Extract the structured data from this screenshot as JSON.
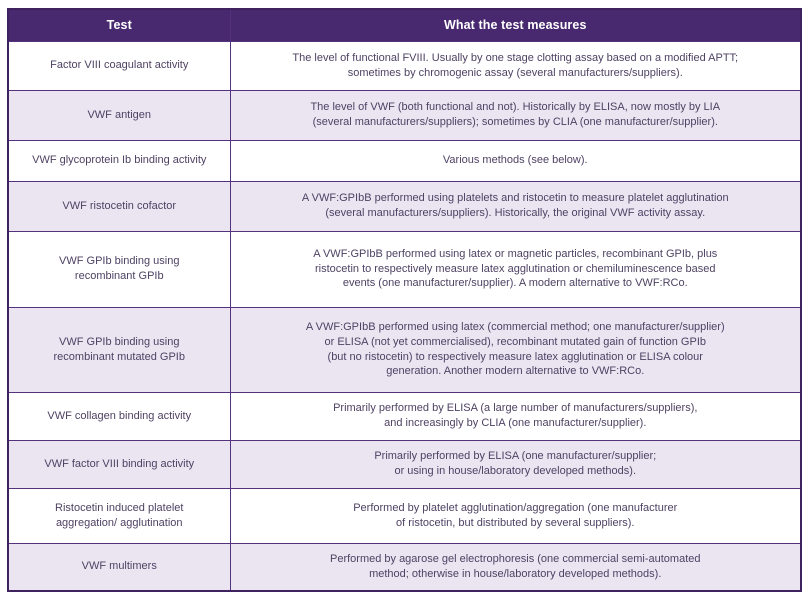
{
  "colors": {
    "header_background": "#482970",
    "header_text": "#ffffff",
    "row_alternate_background": "#ebe5f2",
    "row_background": "#ffffff",
    "border": "#54327e",
    "cell_text": "#4e4263"
  },
  "table": {
    "columns": [
      "Test",
      "What the test measures"
    ],
    "rows": [
      {
        "test": "Factor VIII coagulant activity",
        "measures": "The level of functional FVIII. Usually by one stage clotting assay based on a modified APTT;\nsometimes by chromogenic assay (several manufacturers/suppliers)."
      },
      {
        "test": "VWF antigen",
        "measures": "The level of VWF (both functional and not). Historically by ELISA, now mostly by LIA\n(several manufacturers/suppliers); sometimes by CLIA (one manufacturer/supplier)."
      },
      {
        "test": "VWF glycoprotein Ib binding activity",
        "measures": "Various methods (see below)."
      },
      {
        "test": "VWF ristocetin cofactor",
        "measures": "A VWF:GPIbB performed using platelets and ristocetin to measure platelet agglutination\n(several manufacturers/suppliers). Historically, the original VWF activity assay."
      },
      {
        "test": "VWF GPIb binding using\nrecombinant GPIb",
        "measures": "A VWF:GPIbB performed using latex or magnetic particles, recombinant GPIb, plus\nristocetin to respectively measure latex agglutination or chemiluminescence based\nevents (one manufacturer/supplier). A modern alternative to VWF:RCo."
      },
      {
        "test": "VWF GPIb binding using\nrecombinant mutated GPIb",
        "measures": "A VWF:GPIbB performed using latex (commercial method; one manufacturer/supplier)\nor ELISA (not yet commercialised), recombinant mutated gain of function GPIb\n(but no ristocetin) to respectively measure latex agglutination or ELISA colour\ngeneration. Another modern alternative to VWF:RCo."
      },
      {
        "test": "VWF collagen binding activity",
        "measures": "Primarily performed by ELISA (a large number of manufacturers/suppliers),\nand increasingly by CLIA (one manufacturer/supplier)."
      },
      {
        "test": "VWF factor VIII binding activity",
        "measures": "Primarily performed by ELISA (one manufacturer/supplier;\nor using in house/laboratory developed methods)."
      },
      {
        "test": "Ristocetin induced platelet\naggregation/ agglutination",
        "measures": "Performed by platelet agglutination/aggregation (one manufacturer\nof ristocetin, but distributed by several suppliers)."
      },
      {
        "test": "VWF multimers",
        "measures": "Performed by agarose gel electrophoresis (one commercial semi-automated\nmethod; otherwise in house/laboratory developed methods)."
      }
    ]
  }
}
